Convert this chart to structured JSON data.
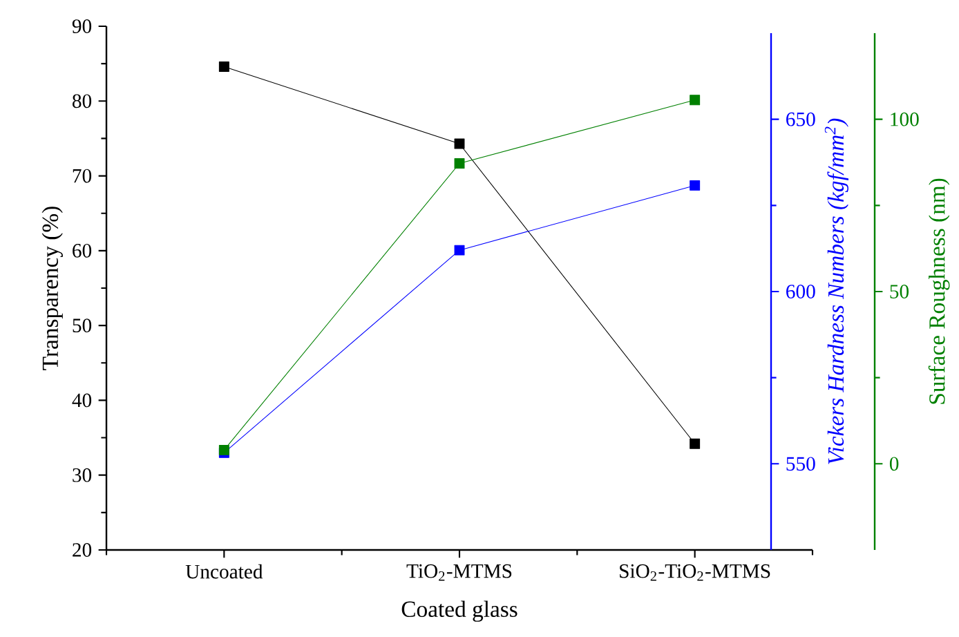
{
  "chart_data": {
    "type": "line",
    "xlabel": "Coated glass",
    "ylabel": "Transparency (%)",
    "y2label": "Vickers Hardness Numbers (kgf/mm$^{2}$)",
    "y3label": "Surface Roughness (nm)",
    "categories": [
      "Uncoated",
      "TiO$_{2}$-MTMS",
      "SiO$_{2}$-TiO$_{2}$-MTMS"
    ],
    "ylim": [
      20,
      90
    ],
    "yticks": [
      20,
      30,
      40,
      50,
      60,
      70,
      80,
      90
    ],
    "y2lim": [
      525,
      675
    ],
    "y2ticks": [
      550,
      600,
      650
    ],
    "y3lim": [
      -25,
      125
    ],
    "y3ticks": [
      0,
      50,
      100
    ],
    "marker": "square",
    "line_style": "solid",
    "grid": false,
    "series": [
      {
        "color": "#000000",
        "values": [
          84.6,
          74.3,
          34.2
        ]
      },
      {
        "color": "#0000ff",
        "axis": "y2",
        "values": [
          553.2,
          612,
          630.8
        ]
      },
      {
        "color": "#008000",
        "axis": "y3",
        "values": [
          4,
          87.2,
          105.6
        ]
      }
    ]
  }
}
